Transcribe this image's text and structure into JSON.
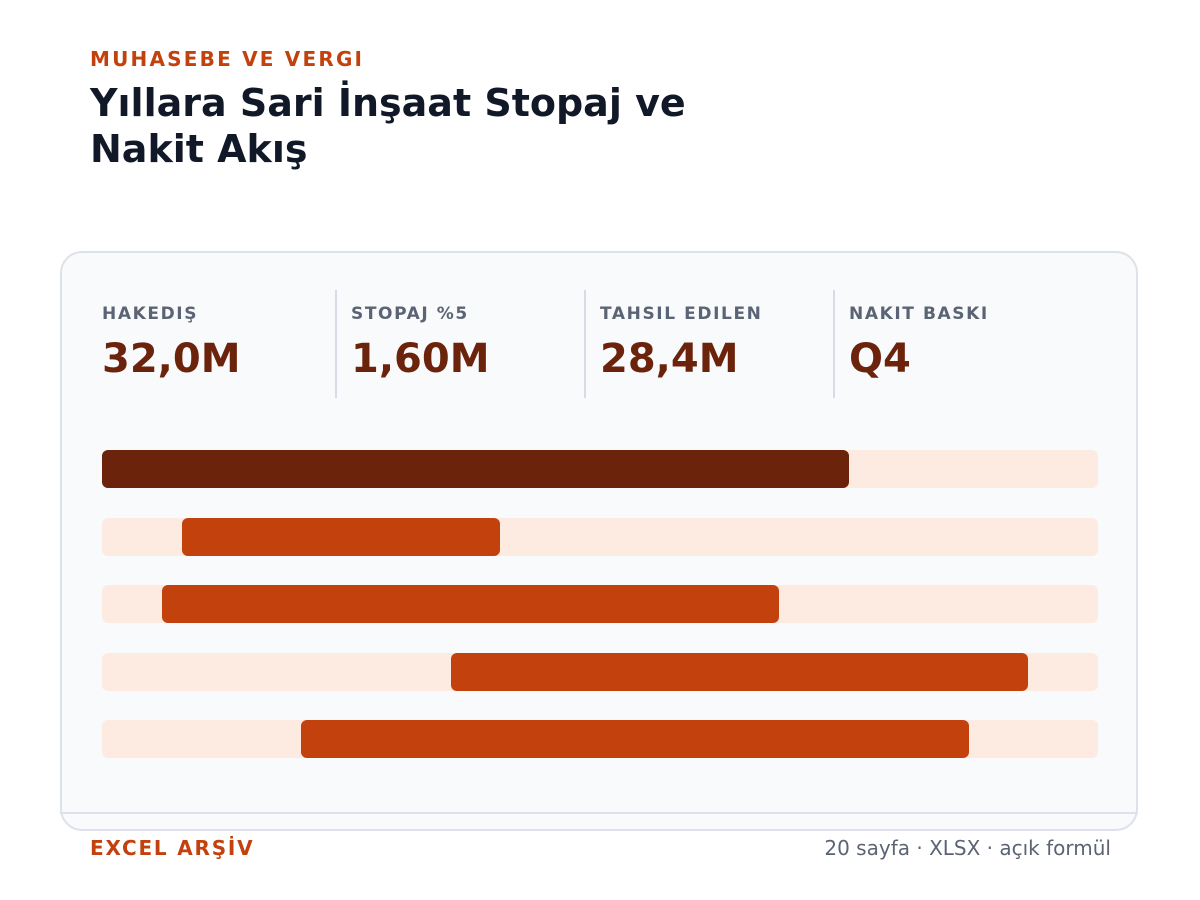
{
  "header": {
    "eyebrow": "MUHASEBE VE VERGI",
    "title": "Yıllara Sari İnşaat Stopaj ve Nakit Akış"
  },
  "stats": [
    {
      "label": "HAKEDIŞ",
      "value": "32,0M"
    },
    {
      "label": "STOPAJ %5",
      "value": "1,60M"
    },
    {
      "label": "TAHSIL EDILEN",
      "value": "28,4M"
    },
    {
      "label": "NAKIT BASKI",
      "value": "Q4"
    }
  ],
  "chart_data": {
    "type": "bar",
    "orientation": "horizontal",
    "x_range": [
      0,
      1
    ],
    "bars": [
      {
        "start": 0.0,
        "end": 0.75,
        "color": "#6b230c"
      },
      {
        "start": 0.08,
        "end": 0.4,
        "color": "#c2410c"
      },
      {
        "start": 0.06,
        "end": 0.68,
        "color": "#c2410c"
      },
      {
        "start": 0.35,
        "end": 0.93,
        "color": "#c2410c"
      },
      {
        "start": 0.2,
        "end": 0.87,
        "color": "#c2410c"
      }
    ],
    "track_color": "#fdeae1"
  },
  "footer": {
    "left": "EXCEL ARŞİV",
    "right": "20 sayfa · XLSX · açık formül"
  }
}
